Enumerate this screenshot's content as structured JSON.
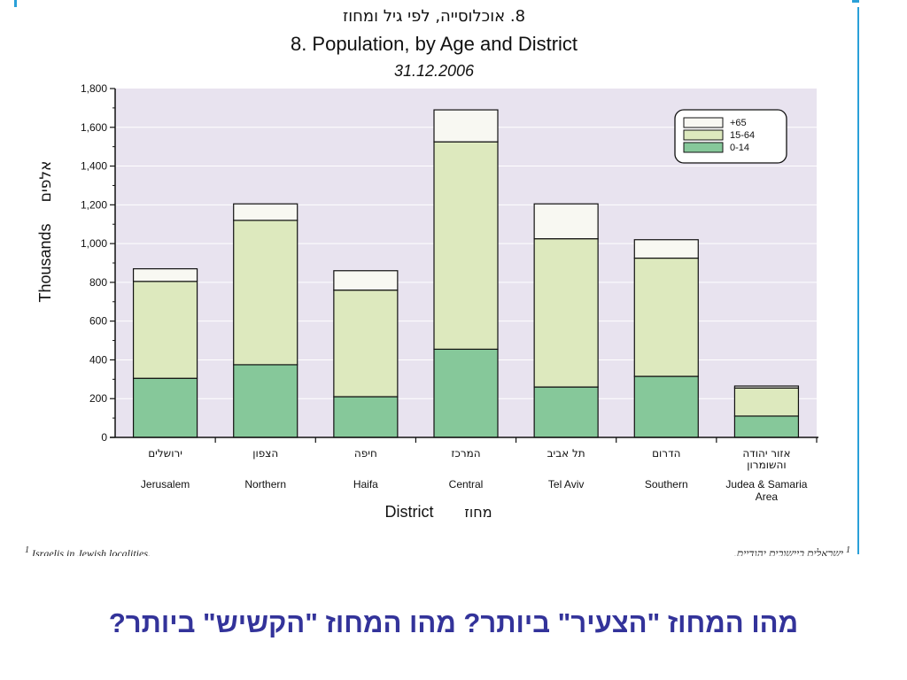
{
  "chart_data": {
    "type": "bar",
    "stacked": true,
    "title_he": "8. אוכלוסייה, לפי גיל ומחוז",
    "title": "8.  Population, by Age and District",
    "subtitle": "31.12.2006",
    "ylabel": "Thousands",
    "ylabel_he": "אלפים",
    "xlabel": "District",
    "xlabel_he": "מחוז",
    "ylim": [
      0,
      1800
    ],
    "yticks": [
      0,
      200,
      400,
      600,
      800,
      1000,
      1200,
      1400,
      1600,
      1800
    ],
    "ytick_labels": [
      "0",
      "200",
      "400",
      "600",
      "800",
      "1,000",
      "1,200",
      "1,400",
      "1,600",
      "1,800"
    ],
    "grid": true,
    "legend_position": "top-right",
    "categories": [
      "Jerusalem",
      "Northern",
      "Haifa",
      "Central",
      "Tel Aviv",
      "Southern",
      "Judea & Samaria Area"
    ],
    "categories_he": [
      "ירושלים",
      "הצפון",
      "חיפה",
      "המרכז",
      "תל אביב",
      "הדרום",
      "אזור יהודה והשומרון"
    ],
    "series": [
      {
        "name": "0-14",
        "color": "#86c89a",
        "values": [
          305,
          375,
          210,
          455,
          260,
          315,
          110
        ]
      },
      {
        "name": "15-64",
        "color": "#dde9be",
        "values": [
          500,
          745,
          550,
          1070,
          765,
          610,
          145
        ]
      },
      {
        "name": "+65",
        "color": "#f8f8f2",
        "values": [
          65,
          85,
          100,
          165,
          180,
          95,
          10
        ]
      }
    ],
    "legend": [
      "+65",
      "15-64",
      "0-14"
    ]
  },
  "footnote_en": "Israelis in Jewish localities.",
  "footnote_he": "ישראלים ביישובים יהודיים.",
  "question": "מהו המחוז \"הצעיר\" ביותר?  מהו המחוז \"הקשיש\" ביותר?",
  "colors": {
    "plot_background": "#e8e3ef",
    "gridline": "#ffffff",
    "question_text": "#33339a",
    "frame": "#2aa0d8"
  }
}
